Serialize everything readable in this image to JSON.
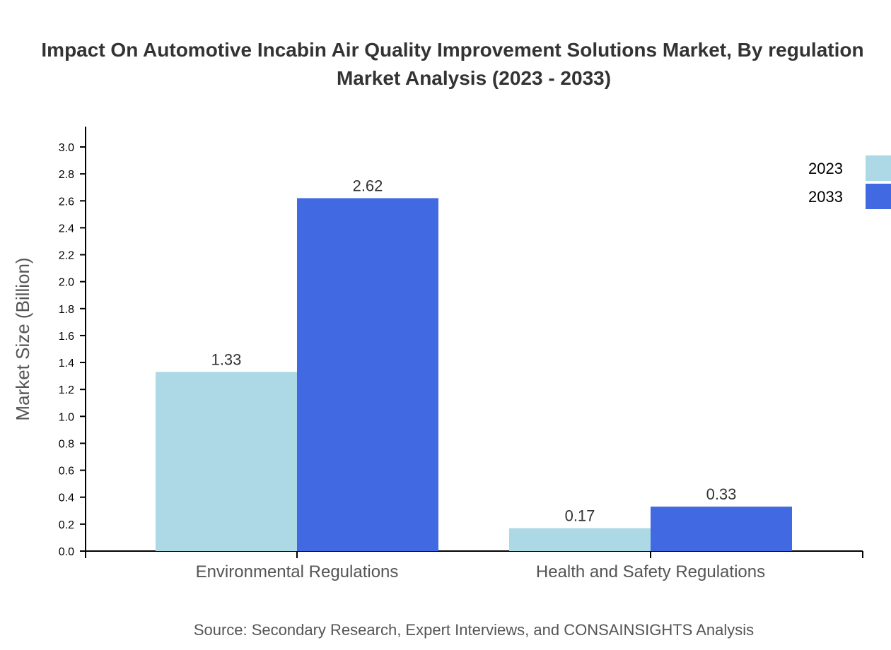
{
  "chart_data": {
    "type": "bar",
    "title_line1": "Impact On Automotive Incabin Air Quality Improvement Solutions Market, By regulation",
    "title_line2": "Market Analysis (2023 - 2033)",
    "ylabel": "Market Size (Billion)",
    "xlabel": "",
    "source": "Source: Secondary Research, Expert Interviews, and CONSAINSIGHTS Analysis",
    "categories": [
      "Environmental Regulations",
      "Health and Safety Regulations"
    ],
    "series": [
      {
        "name": "2023",
        "values": [
          1.33,
          0.17
        ],
        "color": "#add8e6"
      },
      {
        "name": "2033",
        "values": [
          2.62,
          0.33
        ],
        "color": "#4169e1"
      }
    ],
    "ylim": [
      0,
      3.15
    ],
    "yticks": [
      "0.0",
      "0.2",
      "0.4",
      "0.6",
      "0.8",
      "1.0",
      "1.2",
      "1.4",
      "1.6",
      "1.8",
      "2.0",
      "2.2",
      "2.4",
      "2.6",
      "2.8",
      "3.0"
    ],
    "grid": false,
    "legend": "top-right"
  }
}
